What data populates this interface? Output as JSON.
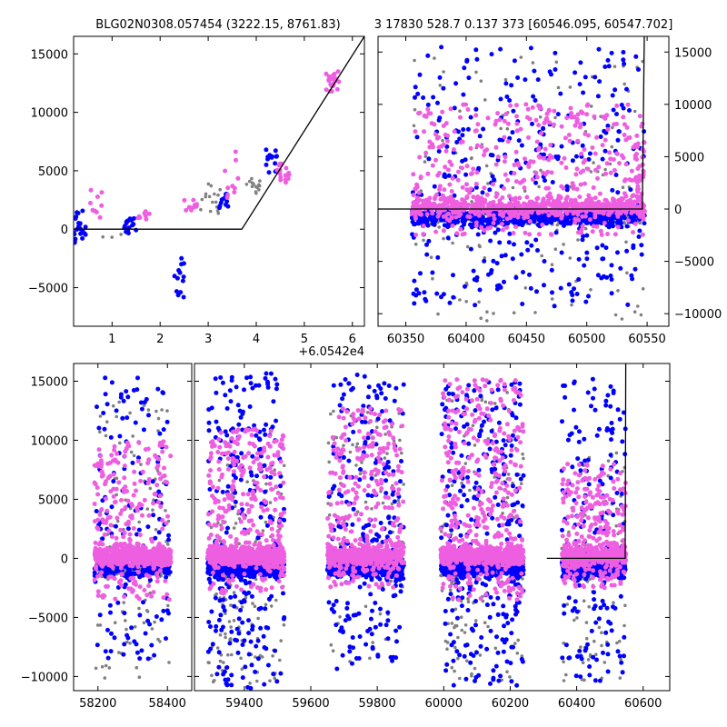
{
  "chart_data": [
    {
      "panel": "top-left",
      "type": "scatter",
      "title": "BLG02N0308.057454 (3222.15, 8761.83)",
      "x_offset_label": "+6.0542e4",
      "xlim": [
        0.2,
        6.25
      ],
      "ylim": [
        -8300,
        16500
      ],
      "xticks": [
        1,
        2,
        3,
        4,
        5,
        6
      ],
      "xtick_labels": [
        "1",
        "2",
        "3",
        "4",
        "5",
        "6"
      ],
      "yticks": [
        -5000,
        0,
        5000,
        10000,
        15000
      ],
      "ytick_labels": [
        "−5000",
        "0",
        "5000",
        "10000",
        "15000"
      ],
      "yaxis_side": "left",
      "grid": false,
      "model_line": [
        [
          0.2,
          0
        ],
        [
          3.7,
          0
        ],
        [
          6.25,
          16500
        ]
      ],
      "colors": {
        "series_a": "#808080",
        "series_b": "#0000ff",
        "series_c": "#ee5ee0",
        "model": "#000000"
      },
      "clusters": [
        {
          "series": "series_b",
          "x": [
            0.2,
            0.45
          ],
          "y": [
            -1500,
            1800
          ],
          "count": 22
        },
        {
          "series": "series_c",
          "x": [
            0.45,
            0.8
          ],
          "y": [
            500,
            3400
          ],
          "count": 10
        },
        {
          "series": "series_a",
          "x": [
            0.8,
            1.2
          ],
          "y": [
            -1000,
            9500
          ],
          "count": 3
        },
        {
          "series": "series_b",
          "x": [
            1.25,
            1.5
          ],
          "y": [
            -600,
            1200
          ],
          "count": 18
        },
        {
          "series": "series_c",
          "x": [
            1.5,
            1.8
          ],
          "y": [
            700,
            1600
          ],
          "count": 8
        },
        {
          "series": "series_b",
          "x": [
            2.3,
            2.5
          ],
          "y": [
            -6800,
            -1000
          ],
          "count": 14
        },
        {
          "series": "series_c",
          "x": [
            2.5,
            2.8
          ],
          "y": [
            1200,
            2500
          ],
          "count": 10
        },
        {
          "series": "series_a",
          "x": [
            2.8,
            3.3
          ],
          "y": [
            500,
            4000
          ],
          "count": 16
        },
        {
          "series": "series_b",
          "x": [
            3.2,
            3.5
          ],
          "y": [
            1500,
            3000
          ],
          "count": 10
        },
        {
          "series": "series_c",
          "x": [
            3.35,
            3.65
          ],
          "y": [
            2000,
            7000
          ],
          "count": 10
        },
        {
          "series": "series_a",
          "x": [
            3.8,
            4.1
          ],
          "y": [
            3000,
            4500
          ],
          "count": 14
        },
        {
          "series": "series_b",
          "x": [
            4.2,
            4.45
          ],
          "y": [
            4500,
            6800
          ],
          "count": 14
        },
        {
          "series": "series_c",
          "x": [
            4.4,
            4.75
          ],
          "y": [
            3800,
            5600
          ],
          "count": 16
        },
        {
          "series": "series_c",
          "x": [
            5.45,
            5.75
          ],
          "y": [
            11800,
            13500
          ],
          "count": 22
        }
      ]
    },
    {
      "panel": "top-right",
      "type": "scatter",
      "title": "3 17830 528.7 0.137 373 [60546.095, 60547.702]",
      "xlim": [
        60327,
        60568
      ],
      "ylim": [
        -11200,
        16500
      ],
      "xticks": [
        60350,
        60400,
        60450,
        60500,
        60550
      ],
      "xtick_labels": [
        "60350",
        "60400",
        "60450",
        "60500",
        "60550"
      ],
      "yticks": [
        -10000,
        -5000,
        0,
        5000,
        10000,
        15000
      ],
      "ytick_labels": [
        "−10000",
        "−5000",
        "0",
        "5000",
        "10000",
        "15000"
      ],
      "yaxis_side": "right",
      "grid": false,
      "model_line": [
        [
          60327,
          0
        ],
        [
          60546,
          0
        ],
        [
          60547.7,
          16500
        ]
      ],
      "colors": {
        "series_a": "#808080",
        "series_b": "#0000ff",
        "series_c": "#ee5ee0",
        "model": "#000000"
      },
      "clusters": [
        {
          "series": "series_a",
          "x": [
            60355,
            60548
          ],
          "y": [
            -11000,
            14500
          ],
          "count": 340
        },
        {
          "series": "series_b",
          "x": [
            60355,
            60548
          ],
          "y": [
            -9500,
            15500
          ],
          "count": 900
        },
        {
          "series": "series_c",
          "x": [
            60355,
            60548
          ],
          "y": [
            -2500,
            10000
          ],
          "count": 1000
        },
        {
          "series": "series_c",
          "x": [
            60540,
            60548
          ],
          "y": [
            -1000,
            7000
          ],
          "count": 40
        }
      ]
    },
    {
      "panel": "bottom",
      "type": "scatter",
      "xlim": [
        57840,
        60680
      ],
      "broken_axis_ranges": [
        [
          58130,
          58470
        ],
        [
          59250,
          60680
        ]
      ],
      "ylim": [
        -11200,
        16500
      ],
      "xticks": [
        58200,
        58400,
        59400,
        59600,
        59800,
        60000,
        60200,
        60400,
        60600
      ],
      "xtick_labels": [
        "58200",
        "58400",
        "59400",
        "59600",
        "59800",
        "60000",
        "60200",
        "60400",
        "60600"
      ],
      "yticks": [
        -10000,
        -5000,
        0,
        5000,
        10000,
        15000
      ],
      "ytick_labels": [
        "−10000",
        "−5000",
        "0",
        "5000",
        "10000",
        "15000"
      ],
      "yaxis_side": "left",
      "grid": false,
      "model_line": [
        [
          60310,
          0
        ],
        [
          60546,
          0
        ],
        [
          60547.7,
          16500
        ]
      ],
      "colors": {
        "series_a": "#808080",
        "series_b": "#0000ff",
        "series_c": "#ee5ee0",
        "model": "#000000"
      },
      "clusters": [
        {
          "series": "series_a",
          "x": [
            58190,
            58410
          ],
          "y": [
            -10500,
            13500
          ],
          "count": 260
        },
        {
          "series": "series_b",
          "x": [
            58190,
            58410
          ],
          "y": [
            -8500,
            15300
          ],
          "count": 330
        },
        {
          "series": "series_c",
          "x": [
            58190,
            58410
          ],
          "y": [
            -3500,
            10000
          ],
          "count": 700
        },
        {
          "series": "series_a",
          "x": [
            59290,
            59520
          ],
          "y": [
            -11000,
            8000
          ],
          "count": 330
        },
        {
          "series": "series_b",
          "x": [
            59290,
            59520
          ],
          "y": [
            -11000,
            15700
          ],
          "count": 700
        },
        {
          "series": "series_c",
          "x": [
            59290,
            59520
          ],
          "y": [
            -3000,
            11000
          ],
          "count": 750
        },
        {
          "series": "series_a",
          "x": [
            59650,
            59880
          ],
          "y": [
            -9000,
            12500
          ],
          "count": 250
        },
        {
          "series": "series_b",
          "x": [
            59650,
            59880
          ],
          "y": [
            -9500,
            15600
          ],
          "count": 550
        },
        {
          "series": "series_c",
          "x": [
            59650,
            59880
          ],
          "y": [
            -2500,
            12800
          ],
          "count": 700
        },
        {
          "series": "series_a",
          "x": [
            59990,
            60240
          ],
          "y": [
            -10500,
            14500
          ],
          "count": 330
        },
        {
          "series": "series_b",
          "x": [
            59990,
            60240
          ],
          "y": [
            -10800,
            15000
          ],
          "count": 700
        },
        {
          "series": "series_c",
          "x": [
            59990,
            60240
          ],
          "y": [
            -3500,
            15200
          ],
          "count": 850
        },
        {
          "series": "series_a",
          "x": [
            60355,
            60548
          ],
          "y": [
            -10500,
            9000
          ],
          "count": 220
        },
        {
          "series": "series_b",
          "x": [
            60355,
            60548
          ],
          "y": [
            -10500,
            15200
          ],
          "count": 500
        },
        {
          "series": "series_c",
          "x": [
            60355,
            60548
          ],
          "y": [
            -2500,
            8000
          ],
          "count": 600
        }
      ]
    }
  ]
}
